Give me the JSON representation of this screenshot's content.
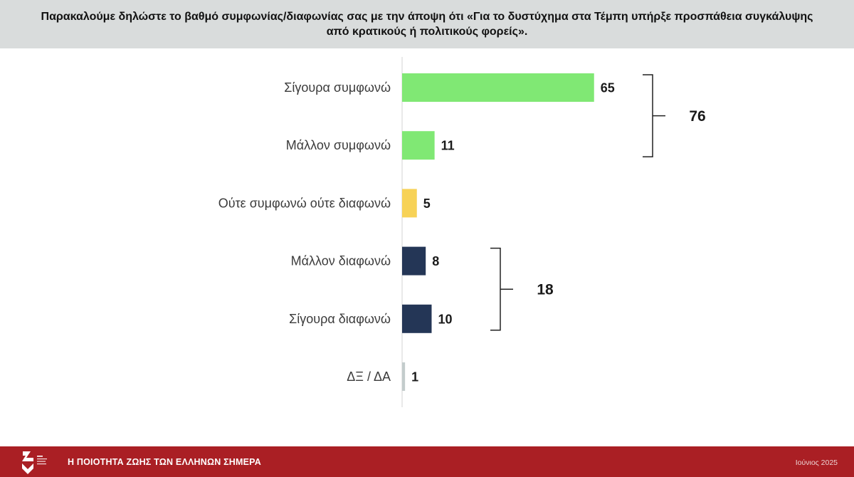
{
  "theme": {
    "header_bg": "#d9dcdc",
    "footer_bg": "#aa1f24",
    "axis_color": "#e2e2e2",
    "bracket_color": "#222222"
  },
  "chart_data": {
    "type": "bar",
    "orientation": "horizontal",
    "title": "Παρακαλούμε δηλώστε το βαθμό συμφωνίας/διαφωνίας σας με την άποψη ότι «Για το δυστύχημα στα Τέμπη υπήρξε προσπάθεια συγκάλυψης από κρατικούς ή πολιτικούς φορείς».",
    "categories": [
      "Σίγουρα συμφωνώ",
      "Μάλλον συμφωνώ",
      "Ούτε συμφωνώ ούτε διαφωνώ",
      "Μάλλον διαφωνώ",
      "Σίγουρα διαφωνώ",
      "ΔΞ / ΔΑ"
    ],
    "values": [
      65,
      11,
      5,
      8,
      10,
      1
    ],
    "colors": [
      "#80e874",
      "#80e874",
      "#f7d257",
      "#243656",
      "#243656",
      "#c3cccc"
    ],
    "xlim": [
      0,
      100
    ],
    "grid": false,
    "value_labels": true,
    "groups": [
      {
        "category_indices": [
          0,
          1
        ],
        "total": 76
      },
      {
        "category_indices": [
          3,
          4
        ],
        "total": 18
      }
    ]
  },
  "footer": {
    "logo_icon": "organization-logo",
    "survey_title": "Η ΠΟΙΟΤΗΤΑ ΖΩΗΣ ΤΩΝ ΕΛΛΗΝΩΝ ΣΗΜΕΡΑ",
    "date": "Ιούνιος 2025"
  }
}
